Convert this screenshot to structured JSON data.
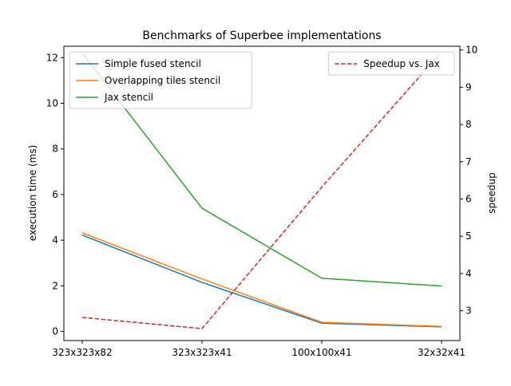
{
  "chart_data": {
    "type": "line",
    "title": "Benchmarks of Superbee implementations",
    "xlabel": "",
    "ylabel": "execution time (ms)",
    "y2label": "speedup",
    "categories": [
      "323x323x82",
      "323x323x41",
      "100x100x41",
      "32x32x41"
    ],
    "ylim": [
      -0.4,
      12.5
    ],
    "y2lim": [
      2.2,
      10.1
    ],
    "yticks": [
      0,
      2,
      4,
      6,
      8,
      10,
      12
    ],
    "y2ticks": [
      3,
      4,
      5,
      6,
      7,
      8,
      9,
      10
    ],
    "grid": false,
    "legend_left_position": "top-left",
    "legend_right_position": "top-right",
    "series": [
      {
        "name": "Simple fused stencil",
        "axis": "left",
        "color": "#1f77b4",
        "dash": "solid",
        "values": [
          4.22,
          2.15,
          0.36,
          0.2
        ]
      },
      {
        "name": "Overlapping tiles stencil",
        "axis": "left",
        "color": "#ff7f0e",
        "dash": "solid",
        "values": [
          4.32,
          2.3,
          0.4,
          0.22
        ]
      },
      {
        "name": "Jax stencil",
        "axis": "left",
        "color": "#2ca02c",
        "dash": "solid",
        "values": [
          12.2,
          5.4,
          2.33,
          1.99
        ]
      },
      {
        "name": "Speedup vs. Jax",
        "axis": "right",
        "color": "#d62728",
        "dash": "dashed",
        "values": [
          2.82,
          2.52,
          6.32,
          9.95
        ]
      }
    ]
  }
}
